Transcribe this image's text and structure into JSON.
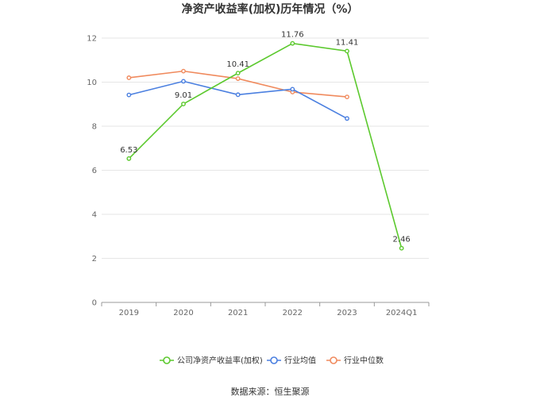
{
  "chart_data": {
    "type": "line",
    "title": "净资产收益率(加权)历年情况（%）",
    "categories": [
      "2019",
      "2020",
      "2021",
      "2022",
      "2023",
      "2024Q1"
    ],
    "ylim": [
      0,
      12
    ],
    "yticks": [
      0,
      2,
      4,
      6,
      8,
      10,
      12
    ],
    "grid": true,
    "legend_position": "bottom",
    "series": [
      {
        "name": "公司净资产收益率(加权)",
        "color": "#5cc92e",
        "values": [
          6.53,
          9.01,
          10.41,
          11.76,
          11.41,
          2.46
        ],
        "labels": [
          "6.53",
          "9.01",
          "10.41",
          "11.76",
          "11.41",
          "2.46"
        ]
      },
      {
        "name": "行业均值",
        "color": "#4a7fe0",
        "values": [
          9.42,
          10.04,
          9.43,
          9.68,
          8.35,
          null
        ]
      },
      {
        "name": "行业中位数",
        "color": "#f08a5d",
        "values": [
          10.2,
          10.5,
          10.16,
          9.55,
          9.33,
          null
        ]
      }
    ]
  },
  "source_text": "数据来源：恒生聚源"
}
